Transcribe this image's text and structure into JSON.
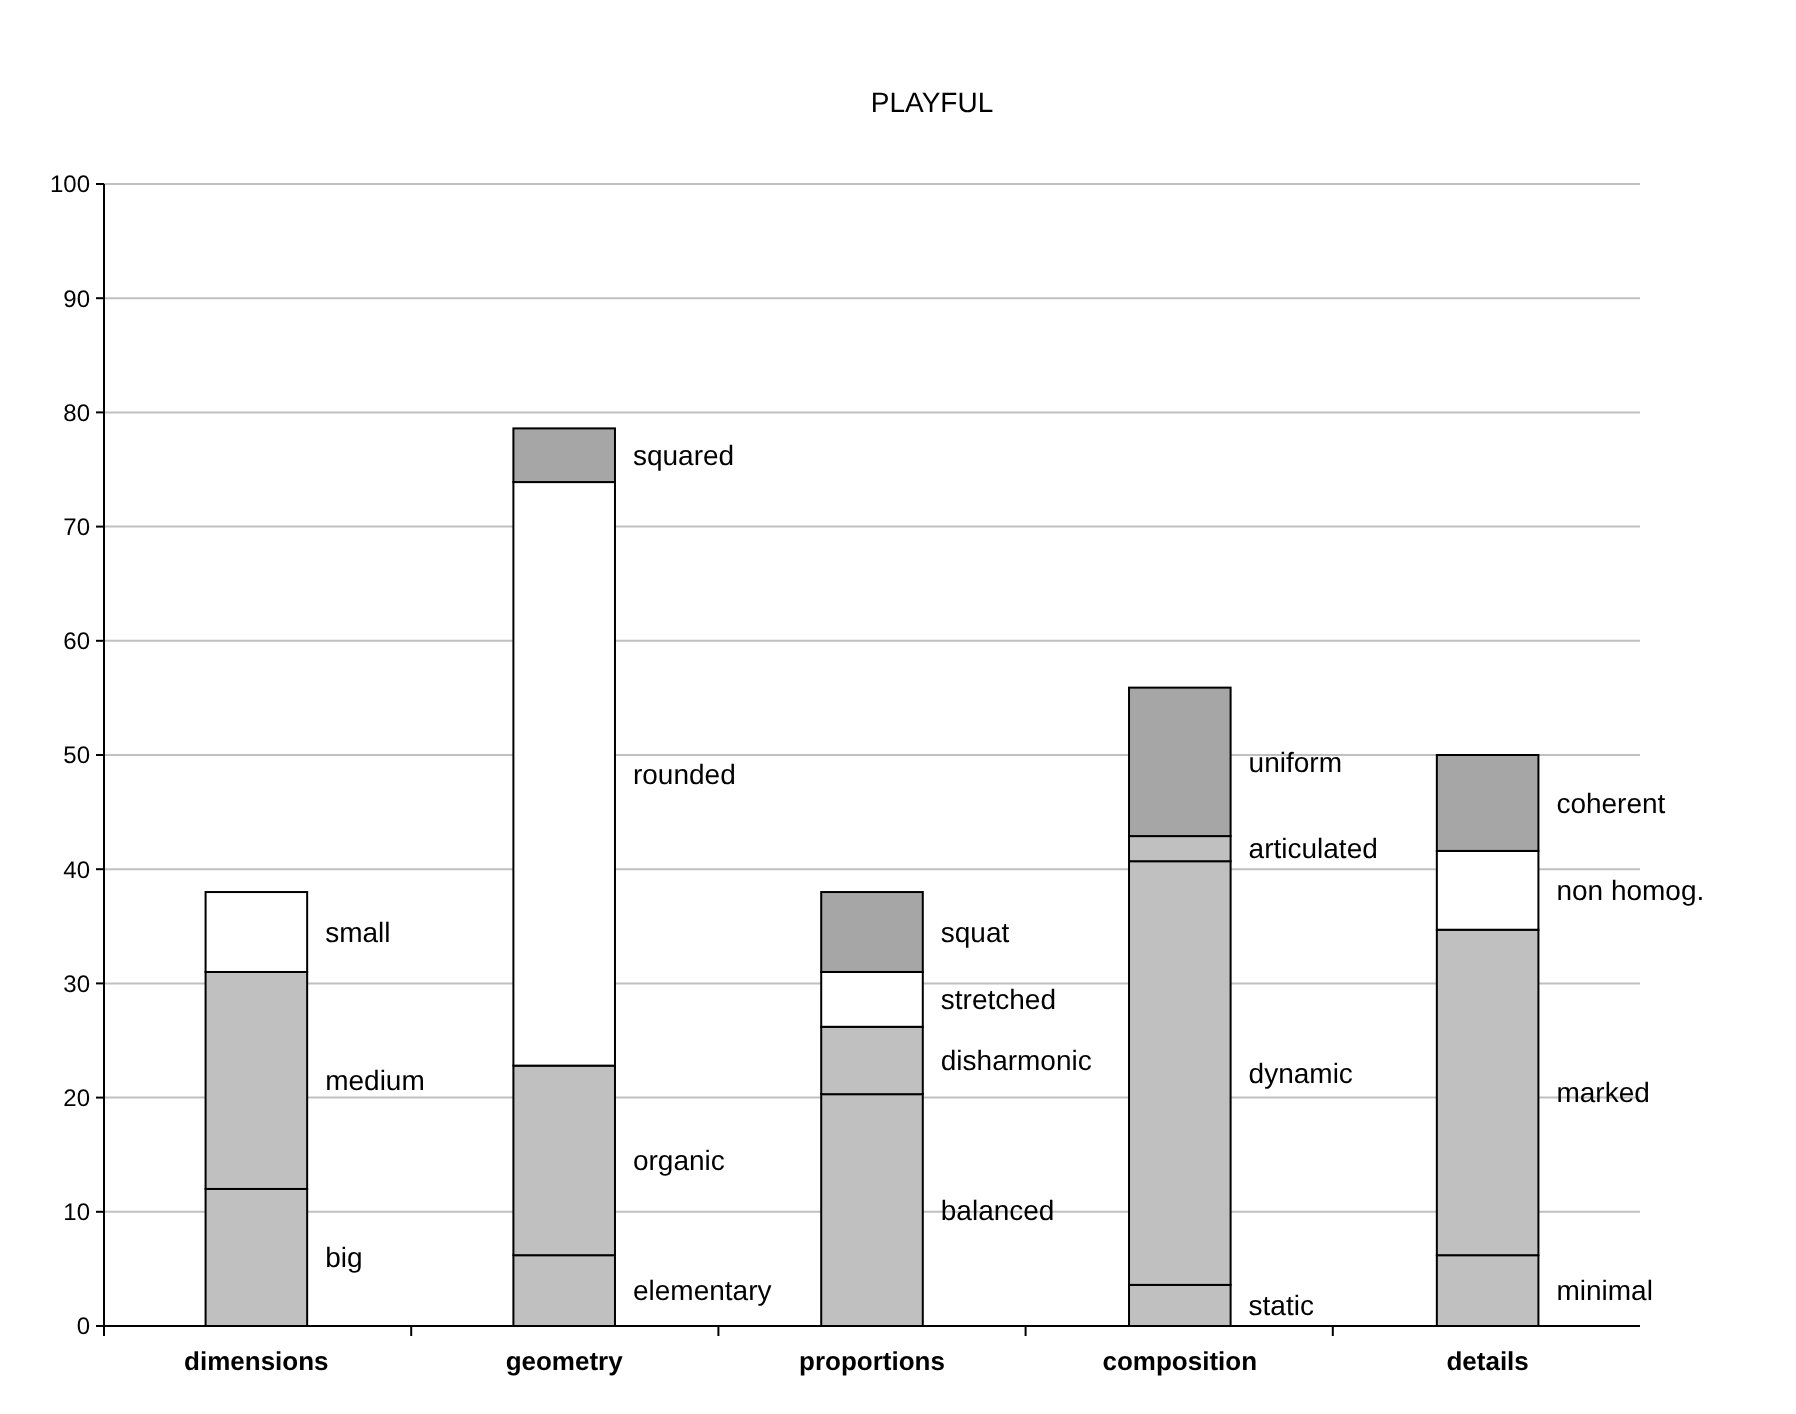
{
  "chart_data": {
    "type": "bar",
    "title": "PLAYFUL",
    "stacked": true,
    "categories": [
      "dimensions",
      "geometry",
      "proportions",
      "composition",
      "details"
    ],
    "series": [
      {
        "colors": [
          "#c0c0c0",
          "#c0c0c0",
          "#c0c0c0",
          "#c0c0c0",
          "#c0c0c0"
        ],
        "values": [
          12,
          6.2,
          20.3,
          3.6,
          6.2
        ]
      },
      {
        "colors": [
          "#c0c0c0",
          "#c0c0c0",
          "#c0c0c0",
          "#c0c0c0",
          "#c0c0c0"
        ],
        "values": [
          19,
          16.6,
          5.9,
          37.1,
          28.5
        ]
      },
      {
        "colors": [
          "#ffffff",
          "#ffffff",
          "#ffffff",
          "#c0c0c0",
          "#ffffff"
        ],
        "values": [
          7,
          51.1,
          4.8,
          2.2,
          6.9
        ]
      },
      {
        "colors": [
          null,
          "#a6a6a6",
          "#a6a6a6",
          "#a6a6a6",
          "#a6a6a6"
        ],
        "values": [
          null,
          4.7,
          7,
          13,
          8.4
        ]
      }
    ],
    "ylim": [
      0,
      100
    ],
    "yticks": [
      0,
      10,
      20,
      30,
      40,
      50,
      60,
      70,
      80,
      90,
      100
    ],
    "grid": "y",
    "annotations": [
      "big",
      "medium",
      "small",
      "elementary",
      "organic",
      "rounded",
      "squared",
      "balanced",
      "disharmonic",
      "stretched",
      "squat",
      "static",
      "dynamic",
      "articulated",
      "uniform",
      "minimal",
      "marked",
      "non homog.",
      "coherent"
    ]
  }
}
